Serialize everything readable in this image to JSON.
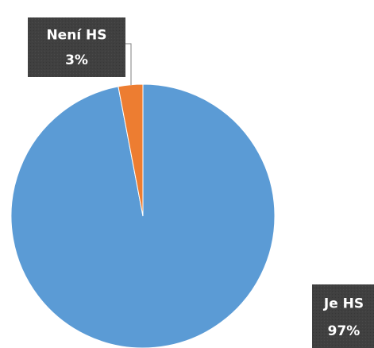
{
  "chart_data": {
    "type": "pie",
    "categories": [
      "Je HS",
      "Není HS"
    ],
    "values": [
      97,
      3
    ],
    "value_labels": [
      "97%",
      "3%"
    ],
    "colors": [
      "#5b9bd5",
      "#ed7d31"
    ]
  }
}
